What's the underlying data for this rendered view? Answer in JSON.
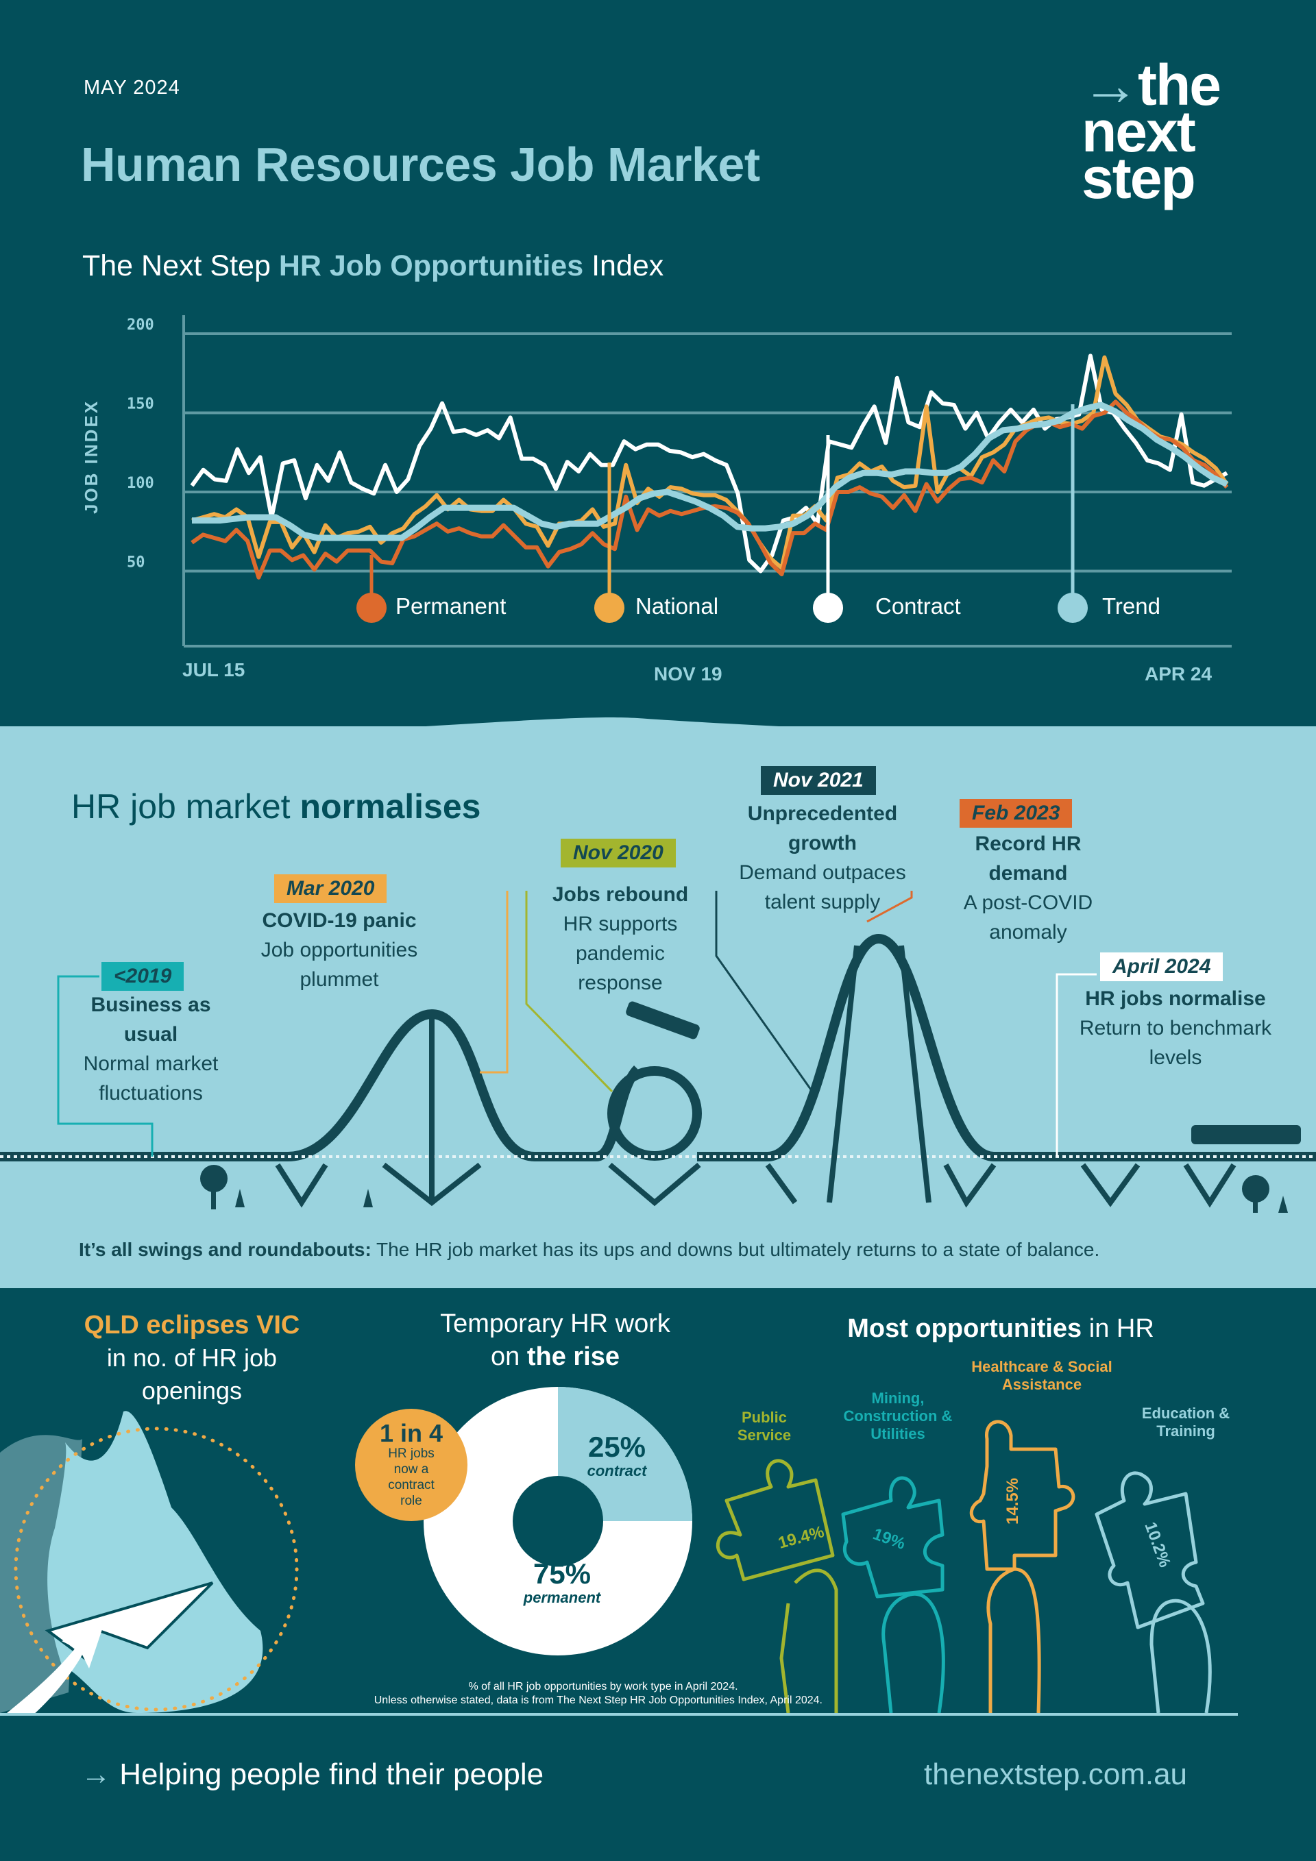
{
  "header": {
    "date": "MAY 2024",
    "title": "Human Resources Job Market",
    "subtitle_pre": "The Next Step ",
    "subtitle_bold": "HR Job Opportunities",
    "subtitle_post": " Index",
    "logo_arrow": "→",
    "logo_lines": [
      "the",
      "next",
      "step"
    ]
  },
  "colors": {
    "background": "#034f5a",
    "light": "#98d2dd",
    "permanent": "#dd6a2d",
    "national": "#f0aa46",
    "contract": "#ffffff",
    "trend": "#98d2dd",
    "public_service": "#a3b52e",
    "mining": "#17afb2",
    "healthcare": "#f0aa46",
    "education": "#98d2dd"
  },
  "chart_data": [
    {
      "type": "line",
      "title": "The Next Step HR Job Opportunities Index",
      "xlabel": "",
      "ylabel": "JOB INDEX",
      "ylim": [
        0,
        200
      ],
      "yticks": [
        50,
        100,
        150,
        200
      ],
      "xtick_labels": [
        "JUL 15",
        "NOV 19",
        "APR 24"
      ],
      "x_range": [
        "Jul 2015",
        "Apr 2024"
      ],
      "grid": true,
      "legend": [
        "Permanent",
        "National",
        "Contract",
        "Trend"
      ],
      "legend_position": "inside-bottom",
      "series": [
        {
          "name": "Permanent",
          "color": "#dd6a2d",
          "values": [
            68,
            73,
            71,
            69,
            76,
            69,
            46,
            63,
            63,
            57,
            60,
            51,
            61,
            56,
            63,
            63,
            63,
            56,
            55,
            70,
            72,
            76,
            80,
            75,
            77,
            74,
            72,
            72,
            79,
            72,
            65,
            65,
            53,
            62,
            64,
            67,
            74,
            67,
            64,
            97,
            76,
            89,
            85,
            88,
            86,
            88,
            90,
            91,
            90,
            87,
            80,
            68,
            55,
            48,
            74,
            74,
            80,
            76,
            100,
            100,
            103,
            99,
            97,
            90,
            98,
            88,
            105,
            94,
            102,
            108,
            109,
            106,
            120,
            113,
            132,
            139,
            143,
            144,
            141,
            143,
            140,
            148,
            150,
            157,
            150,
            145,
            138,
            134,
            133,
            128,
            120,
            117,
            111,
            103
          ]
        },
        {
          "name": "National",
          "color": "#f0aa46",
          "values": [
            82,
            84,
            86,
            84,
            89,
            84,
            59,
            81,
            81,
            65,
            74,
            62,
            79,
            71,
            74,
            75,
            78,
            68,
            74,
            77,
            86,
            91,
            98,
            89,
            95,
            89,
            88,
            88,
            95,
            89,
            80,
            78,
            66,
            80,
            80,
            82,
            89,
            78,
            80,
            117,
            93,
            102,
            97,
            103,
            102,
            99,
            98,
            98,
            95,
            88,
            80,
            68,
            58,
            52,
            85,
            85,
            91,
            82,
            109,
            111,
            118,
            113,
            116,
            107,
            103,
            104,
            154,
            100,
            113,
            115,
            110,
            122,
            125,
            130,
            140,
            143,
            146,
            147,
            144,
            143,
            145,
            150,
            185,
            162,
            155,
            145,
            140,
            135,
            133,
            130,
            125,
            121,
            115,
            105
          ]
        },
        {
          "name": "Contract",
          "color": "#ffffff",
          "values": [
            104,
            114,
            108,
            107,
            127,
            112,
            122,
            84,
            118,
            120,
            96,
            117,
            107,
            125,
            106,
            102,
            99,
            117,
            100,
            108,
            129,
            140,
            156,
            138,
            139,
            136,
            139,
            134,
            147,
            121,
            121,
            117,
            102,
            119,
            113,
            124,
            117,
            117,
            132,
            127,
            130,
            130,
            126,
            125,
            122,
            124,
            120,
            117,
            99,
            57,
            50,
            60,
            82,
            84,
            90,
            80,
            132,
            130,
            128,
            142,
            154,
            131,
            172,
            144,
            141,
            163,
            156,
            155,
            140,
            150,
            134,
            144,
            152,
            144,
            152,
            140,
            146,
            147,
            149,
            186,
            152,
            150,
            140,
            131,
            120,
            118,
            114,
            149,
            106,
            104,
            108,
            112
          ]
        },
        {
          "name": "Trend",
          "color": "#98d2dd",
          "values": [
            82,
            82,
            82,
            83,
            84,
            84,
            84,
            79,
            73,
            71,
            71,
            71,
            71,
            71,
            71,
            71,
            77,
            84,
            90,
            90,
            90,
            90,
            90,
            90,
            85,
            80,
            78,
            80,
            80,
            80,
            85,
            90,
            96,
            99,
            100,
            97,
            94,
            90,
            85,
            78,
            77,
            77,
            78,
            80,
            85,
            93,
            103,
            109,
            112,
            112,
            111,
            113,
            113,
            112,
            112,
            116,
            124,
            134,
            139,
            140,
            142,
            143,
            145,
            150,
            153,
            155,
            151,
            145,
            140,
            133,
            128,
            122,
            115,
            109,
            105
          ]
        }
      ]
    },
    {
      "type": "pie",
      "title": "Temporary HR work on the rise",
      "categories": [
        "contract",
        "permanent"
      ],
      "values": [
        25,
        75
      ],
      "colors": [
        "#98d2dd",
        "#ffffff"
      ],
      "donut": true,
      "note": "% of all HR job opportunities by work type in April 2024."
    },
    {
      "type": "bar",
      "title": "Most opportunities in HR",
      "categories": [
        "Public Service",
        "Mining, Construction & Utilities",
        "Healthcare & Social Assistance",
        "Education & Training"
      ],
      "values": [
        19.4,
        19,
        14.5,
        10.2
      ],
      "unit": "%"
    }
  ],
  "chart": {
    "y_title": "JOB INDEX",
    "y_ticks": [
      "200",
      "150",
      "100",
      "50"
    ],
    "x_ticks": [
      "JUL 15",
      "NOV 19",
      "APR 24"
    ],
    "legend": [
      {
        "label": "Permanent",
        "color": "#dd6a2d"
      },
      {
        "label": "National",
        "color": "#f0aa46"
      },
      {
        "label": "Contract",
        "color": "#ffffff"
      },
      {
        "label": "Trend",
        "color": "#98d2dd"
      }
    ]
  },
  "timeline": {
    "title_pre": "HR job market ",
    "title_bold": "normalises",
    "events": [
      {
        "tag": "<2019",
        "heading": "Business as usual",
        "text": "Normal market fluctuations",
        "color": "#17afb2"
      },
      {
        "tag": "Mar 2020",
        "heading": "COVID-19 panic",
        "text": "Job opportunities plummet",
        "color": "#f0aa46"
      },
      {
        "tag": "Nov 2020",
        "heading": "Jobs rebound",
        "text": "HR supports pandemic response",
        "color": "#a3b52e"
      },
      {
        "tag": "Nov 2021",
        "heading": "Unprecedented growth",
        "text": "Demand outpaces talent supply",
        "color": "#134852"
      },
      {
        "tag": "Feb 2023",
        "heading": "Record HR demand",
        "text": "A post-COVID anomaly",
        "color": "#dd6a2d"
      },
      {
        "tag": "April 2024",
        "heading": "HR jobs normalise",
        "text": "Return to benchmark levels",
        "color": "#ffffff"
      }
    ],
    "caption_bold": "It’s all swings and roundabouts:",
    "caption_text": " The HR job market has its ups and downs but ultimately returns to a state of balance."
  },
  "qld": {
    "headline": "QLD eclipses VIC",
    "text": "in no. of HR job openings"
  },
  "temp_work": {
    "title_line1": "Temporary HR work",
    "title_pre": "on ",
    "title_bold": "the rise",
    "badge_big": "1 in 4",
    "badge_text": "HR jobs now a contract role",
    "contract_pct": "25%",
    "contract_label": "contract",
    "permanent_pct": "75%",
    "permanent_label": "permanent"
  },
  "industries": {
    "title_bold": "Most opportunities",
    "title_post": " in HR",
    "items": [
      {
        "label": "Public Service",
        "value": "19.4%"
      },
      {
        "label": "Mining, Construction & Utilities",
        "value": "19%"
      },
      {
        "label": "Healthcare & Social Assistance",
        "value": "14.5%"
      },
      {
        "label": "Education & Training",
        "value": "10.2%"
      }
    ]
  },
  "footnotes": {
    "line1": "% of all HR job opportunities by work type in April 2024.",
    "line2": "Unless otherwise stated, data is from The Next Step HR Job Opportunities Index, April 2024."
  },
  "footer": {
    "arrow": "→",
    "tagline": "Helping people find their people",
    "url": "thenextstep.com.au"
  }
}
